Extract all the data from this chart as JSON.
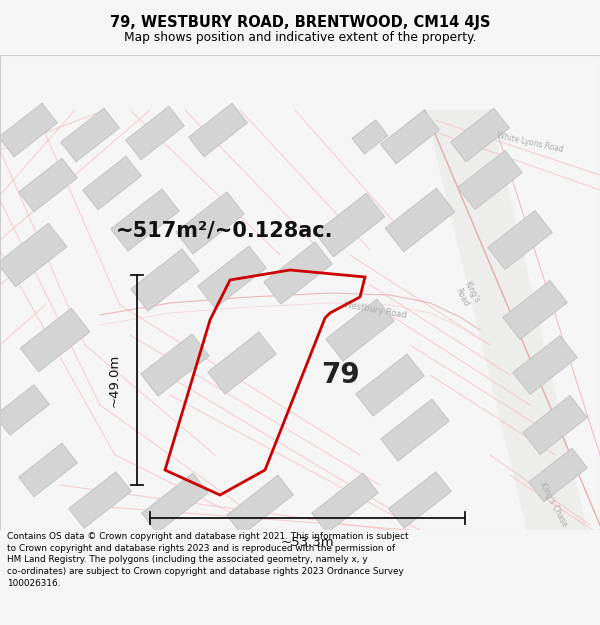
{
  "title_line1": "79, WESTBURY ROAD, BRENTWOOD, CM14 4JS",
  "title_line2": "Map shows position and indicative extent of the property.",
  "area_text": "~517m²/~0.128ac.",
  "label_number": "79",
  "dim_height": "~49.0m",
  "dim_width": "~53.3m",
  "footer_text": "Contains OS data © Crown copyright and database right 2021. This information is subject to Crown copyright and database rights 2023 and is reproduced with the permission of HM Land Registry. The polygons (including the associated geometry, namely x, y co-ordinates) are subject to Crown copyright and database rights 2023 Ordnance Survey 100026316.",
  "bg_color": "#f5f5f5",
  "map_bg": "#ffffff",
  "property_color": "#cc0000",
  "road_color_light": "#f2b8b8",
  "road_color_medium": "#e09090",
  "building_color": "#d4d4d4",
  "building_edge": "#c0c0c0",
  "road_text_color": "#aaaaaa",
  "dim_color": "#111111",
  "text_color": "#222222",
  "title_fontsize": 10.5,
  "subtitle_fontsize": 8.8,
  "footer_fontsize": 6.4,
  "area_fontsize": 15,
  "number_fontsize": 20,
  "dim_fontsize": 9.5,
  "road_label_fontsize": 5.5
}
